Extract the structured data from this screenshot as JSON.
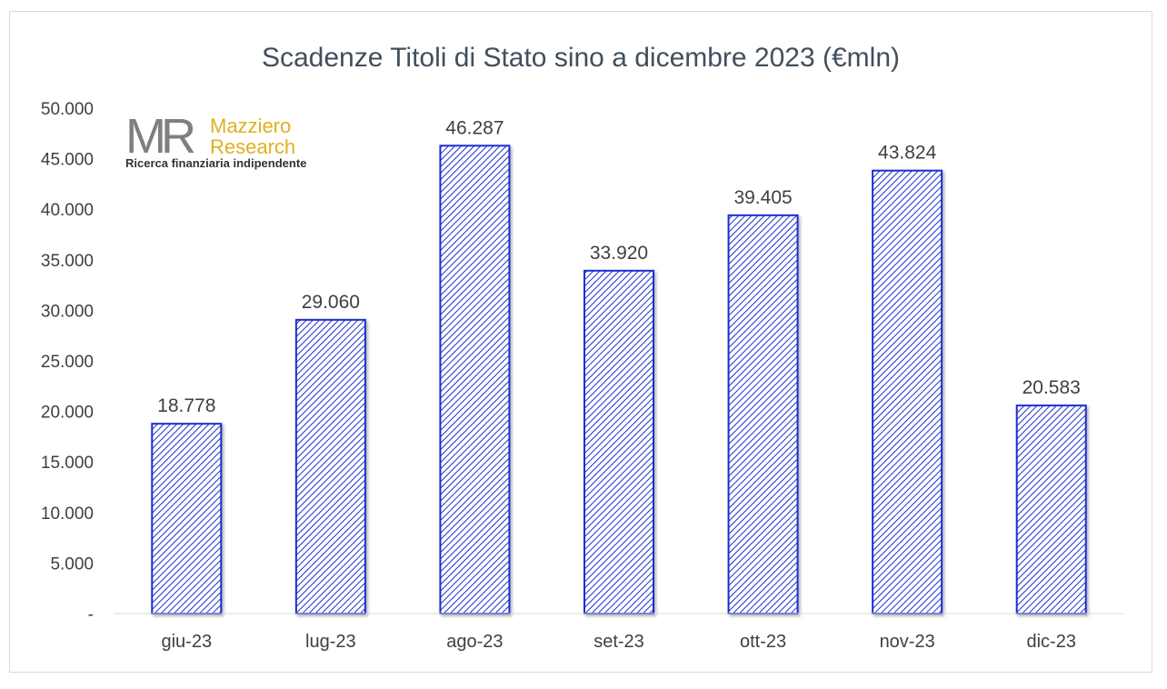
{
  "chart_data": {
    "type": "bar",
    "title": "Scadenze Titoli di Stato sino a dicembre 2023 (€mln)",
    "categories": [
      "giu-23",
      "lug-23",
      "ago-23",
      "set-23",
      "ott-23",
      "nov-23",
      "dic-23"
    ],
    "values": [
      18778,
      29060,
      46287,
      33920,
      39405,
      43824,
      20583
    ],
    "value_labels": [
      "18.778",
      "29.060",
      "46.287",
      "33.920",
      "39.405",
      "43.824",
      "20.583"
    ],
    "y_ticks": [
      0,
      5000,
      10000,
      15000,
      20000,
      25000,
      30000,
      35000,
      40000,
      45000,
      50000
    ],
    "y_tick_labels": [
      "-",
      "5.000",
      "10.000",
      "15.000",
      "20.000",
      "25.000",
      "30.000",
      "35.000",
      "40.000",
      "45.000",
      "50.000"
    ],
    "ylim": [
      0,
      50000
    ],
    "xlabel": "",
    "ylabel": "",
    "grid": false,
    "legend": "none",
    "bar_fill": "diagonal-hatch",
    "bar_color": "#1f2fd0"
  },
  "logo": {
    "mark": "MR",
    "brand_line1": "Mazziero",
    "brand_line2": "Research",
    "tagline": "Ricerca finanziaria indipendente",
    "mark_color": "#7f7f7f",
    "brand_color": "#e0b020"
  }
}
